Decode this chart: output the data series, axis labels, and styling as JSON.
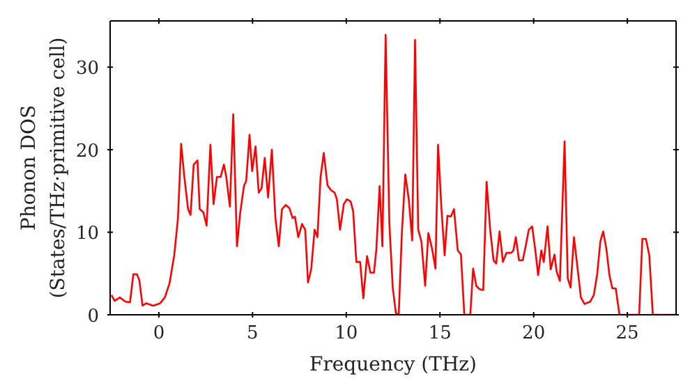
{
  "chart_data": {
    "type": "line",
    "xlabel": "Frequency (THz)",
    "ylabel": "Phonon DOS\n(States/THz·primitive cell)",
    "xlim": [
      -2.6,
      27.6
    ],
    "ylim": [
      0,
      35.6
    ],
    "xticks": [
      0,
      5,
      10,
      15,
      20,
      25
    ],
    "yticks": [
      0,
      10,
      20,
      30
    ],
    "marker": "none",
    "line_style": "solid",
    "series": [
      {
        "color": "#ff0000",
        "x": [
          -2.53,
          -2.36,
          -2.08,
          -1.79,
          -1.54,
          -1.36,
          -1.17,
          -1.04,
          -0.87,
          -0.67,
          -0.3,
          0.07,
          0.32,
          0.57,
          0.82,
          1.02,
          1.19,
          1.36,
          1.56,
          1.69,
          1.86,
          2.06,
          2.18,
          2.38,
          2.55,
          2.75,
          2.92,
          3.1,
          3.3,
          3.47,
          3.6,
          3.79,
          3.97,
          4.17,
          4.34,
          4.54,
          4.66,
          4.84,
          4.98,
          5.16,
          5.33,
          5.48,
          5.65,
          5.83,
          6.03,
          6.22,
          6.4,
          6.57,
          6.77,
          6.97,
          7.14,
          7.26,
          7.44,
          7.64,
          7.81,
          7.96,
          8.13,
          8.31,
          8.46,
          8.63,
          8.8,
          9.0,
          9.18,
          9.38,
          9.5,
          9.67,
          9.87,
          10.04,
          10.24,
          10.37,
          10.54,
          10.74,
          10.91,
          11.11,
          11.29,
          11.48,
          11.61,
          11.78,
          11.93,
          12.1,
          12.3,
          12.48,
          12.65,
          12.8,
          12.97,
          13.15,
          13.34,
          13.52,
          13.67,
          13.84,
          14.01,
          14.21,
          14.38,
          14.58,
          14.76,
          14.9,
          15.08,
          15.25,
          15.4,
          15.58,
          15.75,
          15.95,
          16.12,
          16.3,
          16.62,
          16.77,
          16.94,
          17.11,
          17.31,
          17.49,
          17.68,
          17.86,
          18.0,
          18.18,
          18.36,
          18.55,
          18.8,
          18.92,
          19.05,
          19.22,
          19.42,
          19.6,
          19.74,
          19.92,
          20.09,
          20.24,
          20.41,
          20.54,
          20.74,
          20.91,
          21.11,
          21.23,
          21.4,
          21.65,
          21.82,
          21.97,
          22.15,
          22.32,
          22.52,
          22.72,
          23.02,
          23.21,
          23.39,
          23.56,
          23.71,
          23.88,
          24.05,
          24.2,
          24.38,
          24.58,
          25.63,
          25.8,
          25.99,
          26.17,
          26.36,
          27.6
        ],
        "values": [
          2.4,
          1.7,
          2.1,
          1.6,
          1.5,
          4.9,
          4.9,
          4.2,
          1.1,
          1.4,
          1.1,
          1.4,
          2.1,
          3.8,
          7.2,
          11.7,
          20.7,
          16.7,
          12.8,
          12.1,
          18.2,
          18.7,
          12.8,
          12.4,
          10.8,
          20.6,
          13.4,
          16.7,
          16.7,
          18.2,
          16.7,
          13.1,
          24.3,
          8.3,
          12.3,
          15.6,
          16.2,
          21.8,
          17.4,
          20.4,
          14.8,
          15.3,
          19.0,
          14.2,
          20.0,
          11.7,
          8.3,
          12.8,
          13.3,
          12.9,
          11.7,
          11.9,
          9.4,
          11.0,
          10.3,
          3.9,
          5.5,
          10.3,
          9.4,
          16.7,
          19.6,
          15.7,
          15.1,
          14.8,
          14.0,
          10.3,
          13.4,
          14.0,
          13.7,
          12.5,
          6.4,
          6.4,
          2.0,
          7.1,
          5.1,
          5.1,
          8.0,
          15.6,
          8.3,
          33.9,
          11.1,
          3.3,
          0.2,
          0,
          10.0,
          17.0,
          13.9,
          9.0,
          33.3,
          10.3,
          8.9,
          3.5,
          9.9,
          8.0,
          5.6,
          20.6,
          12.8,
          7.2,
          12.0,
          11.9,
          12.8,
          7.8,
          7.3,
          0,
          0,
          5.6,
          3.5,
          3.1,
          3.0,
          16.1,
          10.3,
          6.6,
          6.2,
          10.1,
          6.4,
          7.5,
          7.5,
          7.8,
          9.4,
          6.6,
          6.6,
          8.6,
          10.3,
          10.7,
          7.8,
          4.8,
          7.8,
          6.4,
          10.7,
          5.5,
          7.3,
          5.2,
          4.1,
          21.0,
          4.4,
          3.3,
          9.4,
          6.1,
          2.1,
          1.3,
          1.6,
          2.4,
          4.9,
          8.9,
          10.1,
          8.0,
          4.7,
          3.2,
          3.2,
          0,
          0,
          9.2,
          9.2,
          7.2,
          0,
          0
        ]
      }
    ]
  }
}
